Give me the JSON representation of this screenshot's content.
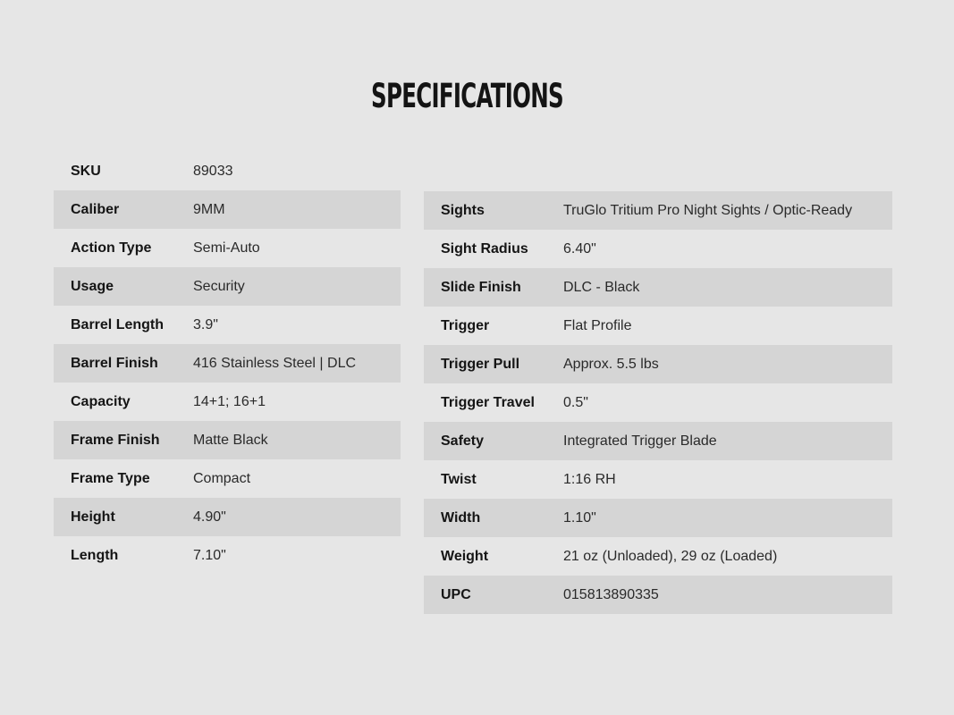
{
  "title": "SPECIFICATIONS",
  "left_specs": [
    {
      "label": "SKU",
      "value": "89033"
    },
    {
      "label": "Caliber",
      "value": "9MM"
    },
    {
      "label": "Action Type",
      "value": "Semi-Auto"
    },
    {
      "label": "Usage",
      "value": "Security"
    },
    {
      "label": "Barrel Length",
      "value": "3.9\""
    },
    {
      "label": "Barrel Finish",
      "value": "416 Stainless Steel | DLC"
    },
    {
      "label": "Capacity",
      "value": "14+1; 16+1"
    },
    {
      "label": "Frame Finish",
      "value": "Matte Black"
    },
    {
      "label": "Frame Type",
      "value": "Compact"
    },
    {
      "label": "Height",
      "value": "4.90\""
    },
    {
      "label": "Length",
      "value": "7.10\""
    }
  ],
  "right_specs": [
    {
      "label": "Sights",
      "value": "TruGlo Tritium Pro Night Sights / Optic-Ready"
    },
    {
      "label": "Sight Radius",
      "value": "6.40\""
    },
    {
      "label": "Slide Finish",
      "value": "DLC - Black"
    },
    {
      "label": "Trigger",
      "value": "Flat Profile"
    },
    {
      "label": "Trigger Pull",
      "value": "Approx. 5.5 lbs"
    },
    {
      "label": "Trigger Travel",
      "value": "0.5\""
    },
    {
      "label": "Safety",
      "value": "Integrated Trigger Blade"
    },
    {
      "label": "Twist",
      "value": "1:16 RH"
    },
    {
      "label": "Width",
      "value": "1.10\""
    },
    {
      "label": "Weight",
      "value": "21 oz (Unloaded), 29 oz (Loaded)"
    },
    {
      "label": "UPC",
      "value": "015813890335"
    }
  ]
}
